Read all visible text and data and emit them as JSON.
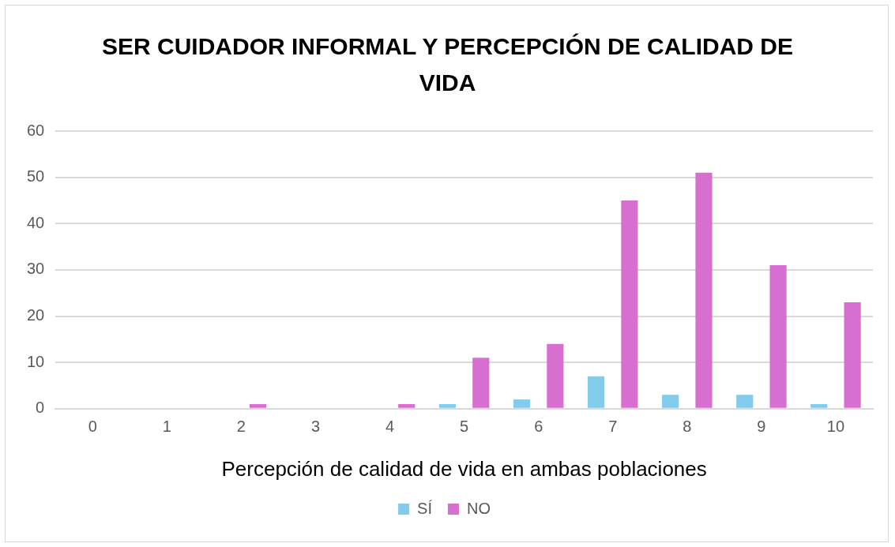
{
  "chart_data": {
    "type": "bar",
    "title": "SER CUIDADOR INFORMAL Y PERCEPCIÓN DE CALIDAD DE VIDA",
    "xlabel": "Percepción de calidad de vida en ambas poblaciones",
    "categories": [
      "0",
      "1",
      "2",
      "3",
      "4",
      "5",
      "6",
      "7",
      "8",
      "9",
      "10"
    ],
    "series": [
      {
        "name": "SÍ",
        "color": "#83cbeb",
        "values": [
          0,
          0,
          0,
          0,
          0,
          1,
          2,
          7,
          3,
          3,
          1
        ]
      },
      {
        "name": "NO",
        "color": "#d76fd0",
        "values": [
          0,
          0,
          1,
          0,
          1,
          11,
          14,
          45,
          51,
          31,
          23
        ]
      }
    ],
    "ylim": [
      0,
      60
    ],
    "yticks": [
      0,
      10,
      20,
      30,
      40,
      50,
      60
    ],
    "grid": "y",
    "legend": "bottom"
  }
}
